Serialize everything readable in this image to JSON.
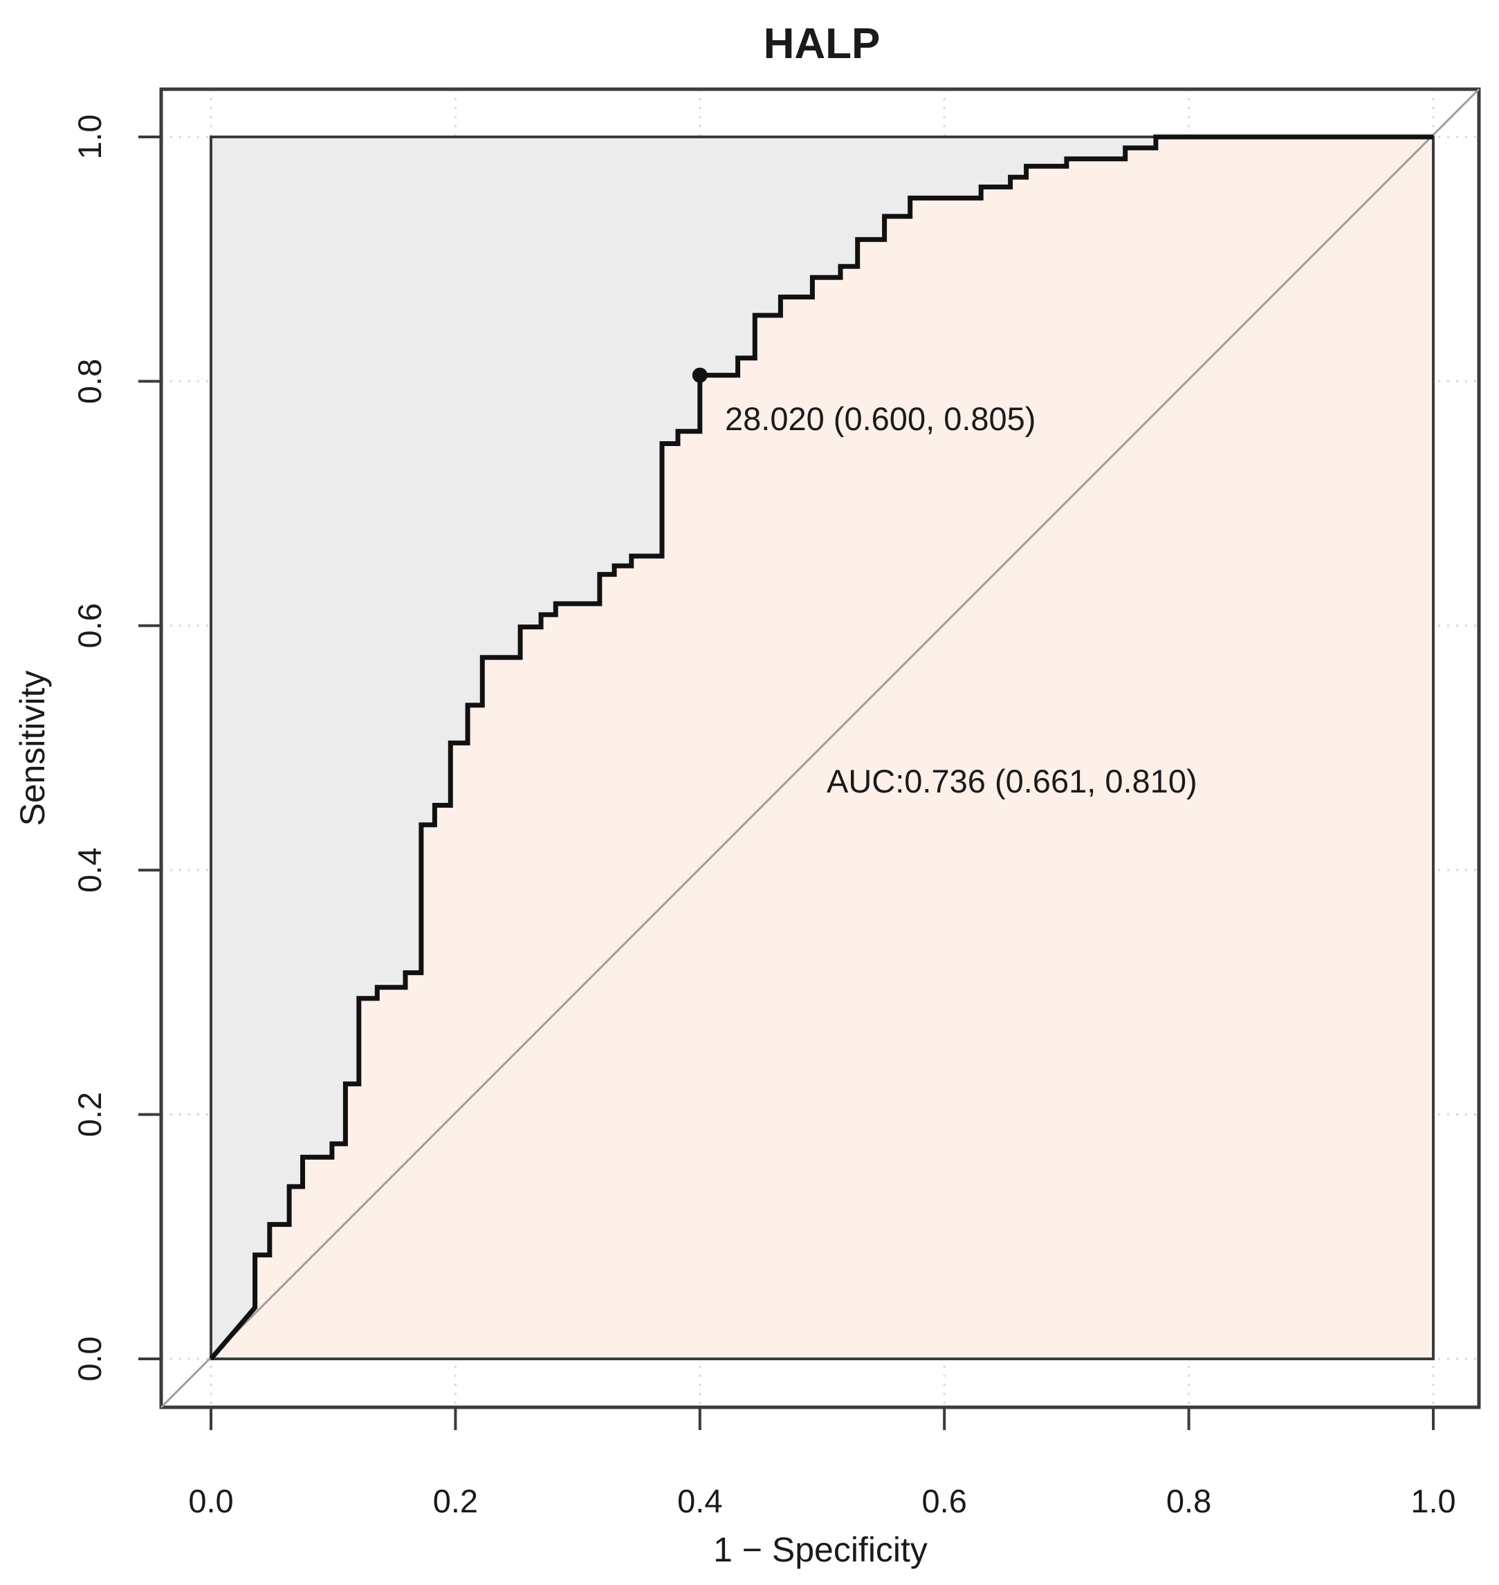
{
  "title": "HALP",
  "chart_data": {
    "type": "line",
    "chart_kind": "roc-curve",
    "title": "HALP",
    "xlabel": "1 − Specificity",
    "ylabel": "Sensitivity",
    "xlim": [
      0,
      1
    ],
    "ylim": [
      0,
      1
    ],
    "x_tick_labels": [
      "0.0",
      "0.2",
      "0.4",
      "0.6",
      "0.8",
      "1.0"
    ],
    "y_tick_labels": [
      "0.0",
      "0.2",
      "0.4",
      "0.6",
      "0.8",
      "1.0"
    ],
    "x_tick_values": [
      0,
      0.2,
      0.4,
      0.6,
      0.8,
      1
    ],
    "y_tick_values": [
      0,
      0.2,
      0.4,
      0.6,
      0.8,
      1
    ],
    "grid": "dotted-at-ticks",
    "legend": "none",
    "series": [
      {
        "name": "ROC curve",
        "style": "step",
        "points": [
          [
            0.0,
            0.0
          ],
          [
            0.036,
            0.042
          ],
          [
            0.036,
            0.085
          ],
          [
            0.048,
            0.085
          ],
          [
            0.048,
            0.11
          ],
          [
            0.064,
            0.11
          ],
          [
            0.064,
            0.141
          ],
          [
            0.075,
            0.141
          ],
          [
            0.075,
            0.165
          ],
          [
            0.099,
            0.165
          ],
          [
            0.099,
            0.176
          ],
          [
            0.11,
            0.176
          ],
          [
            0.11,
            0.225
          ],
          [
            0.121,
            0.225
          ],
          [
            0.121,
            0.295
          ],
          [
            0.136,
            0.295
          ],
          [
            0.136,
            0.304
          ],
          [
            0.159,
            0.304
          ],
          [
            0.159,
            0.316
          ],
          [
            0.172,
            0.316
          ],
          [
            0.172,
            0.437
          ],
          [
            0.183,
            0.437
          ],
          [
            0.183,
            0.453
          ],
          [
            0.196,
            0.453
          ],
          [
            0.196,
            0.504
          ],
          [
            0.21,
            0.504
          ],
          [
            0.21,
            0.535
          ],
          [
            0.222,
            0.535
          ],
          [
            0.222,
            0.574
          ],
          [
            0.253,
            0.574
          ],
          [
            0.253,
            0.599
          ],
          [
            0.27,
            0.599
          ],
          [
            0.27,
            0.609
          ],
          [
            0.282,
            0.609
          ],
          [
            0.282,
            0.618
          ],
          [
            0.318,
            0.618
          ],
          [
            0.318,
            0.642
          ],
          [
            0.33,
            0.642
          ],
          [
            0.33,
            0.649
          ],
          [
            0.344,
            0.649
          ],
          [
            0.344,
            0.657
          ],
          [
            0.369,
            0.657
          ],
          [
            0.369,
            0.749
          ],
          [
            0.382,
            0.749
          ],
          [
            0.382,
            0.759
          ],
          [
            0.4,
            0.759
          ],
          [
            0.4,
            0.805
          ],
          [
            0.431,
            0.805
          ],
          [
            0.431,
            0.819
          ],
          [
            0.445,
            0.819
          ],
          [
            0.445,
            0.854
          ],
          [
            0.466,
            0.854
          ],
          [
            0.466,
            0.869
          ],
          [
            0.492,
            0.869
          ],
          [
            0.492,
            0.885
          ],
          [
            0.515,
            0.885
          ],
          [
            0.515,
            0.894
          ],
          [
            0.529,
            0.894
          ],
          [
            0.529,
            0.916
          ],
          [
            0.551,
            0.916
          ],
          [
            0.551,
            0.935
          ],
          [
            0.572,
            0.935
          ],
          [
            0.572,
            0.95
          ],
          [
            0.63,
            0.95
          ],
          [
            0.63,
            0.959
          ],
          [
            0.654,
            0.959
          ],
          [
            0.654,
            0.967
          ],
          [
            0.667,
            0.967
          ],
          [
            0.667,
            0.976
          ],
          [
            0.7,
            0.976
          ],
          [
            0.7,
            0.982
          ],
          [
            0.748,
            0.982
          ],
          [
            0.748,
            0.991
          ],
          [
            0.773,
            0.991
          ],
          [
            0.773,
            1.0
          ],
          [
            1.0,
            1.0
          ]
        ]
      }
    ],
    "reference_line": {
      "name": "chance diagonal",
      "from": [
        0,
        0
      ],
      "to": [
        1,
        1
      ]
    },
    "best_threshold": {
      "label": "28.020 (0.600, 0.805)",
      "threshold": 28.02,
      "specificity": 0.6,
      "sensitivity": 0.805,
      "plot_point": [
        0.4,
        0.805
      ]
    },
    "auc": {
      "label": "AUC:0.736 (0.661, 0.810)",
      "value": 0.736,
      "ci_lower": 0.661,
      "ci_upper": 0.81
    },
    "colors": {
      "area_under_curve": "#fcf0e9",
      "area_above_curve": "#ececec",
      "curve": "#111111",
      "point": "#111111",
      "diagonal": "#a39c98",
      "box": "#3b3b3b",
      "grid": "#d9d9d9",
      "text": "#1a1a1a",
      "background": "#ffffff"
    }
  }
}
